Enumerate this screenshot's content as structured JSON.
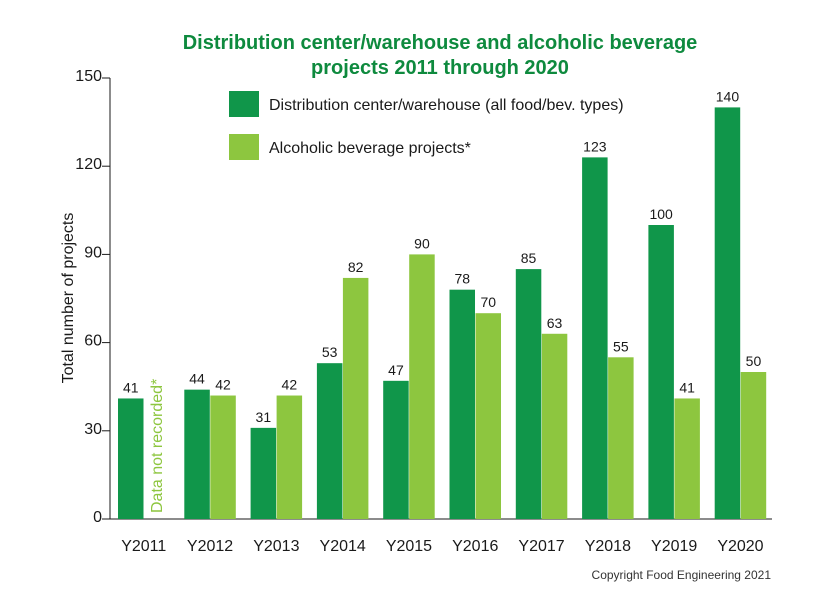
{
  "chart_data": {
    "type": "bar",
    "title_lines": [
      "Distribution center/warehouse and alcoholic beverage",
      "projects 2011 through 2020"
    ],
    "xlabel": "",
    "ylabel": "Total number of projects",
    "ylim": [
      0,
      150
    ],
    "yticks": [
      0,
      30,
      60,
      90,
      120,
      150
    ],
    "grid": false,
    "legend_position": "top",
    "categories": [
      "Y2011",
      "Y2012",
      "Y2013",
      "Y2014",
      "Y2015",
      "Y2016",
      "Y2017",
      "Y2018",
      "Y2019",
      "Y2020"
    ],
    "series": [
      {
        "name": "Distribution center/warehouse (all food/bev. types)",
        "color": "#10964a",
        "values": [
          41,
          44,
          31,
          53,
          47,
          78,
          85,
          123,
          100,
          140
        ]
      },
      {
        "name": "Alcoholic beverage projects*",
        "color": "#8dc63f",
        "values": [
          null,
          42,
          42,
          82,
          90,
          70,
          63,
          55,
          41,
          50
        ]
      }
    ],
    "annotations": [
      {
        "category": "Y2011",
        "series": 1,
        "text": "Data not recorded*"
      }
    ],
    "title_color": "#0e8a3e"
  },
  "copyright": "Copyright Food Engineering 2021"
}
